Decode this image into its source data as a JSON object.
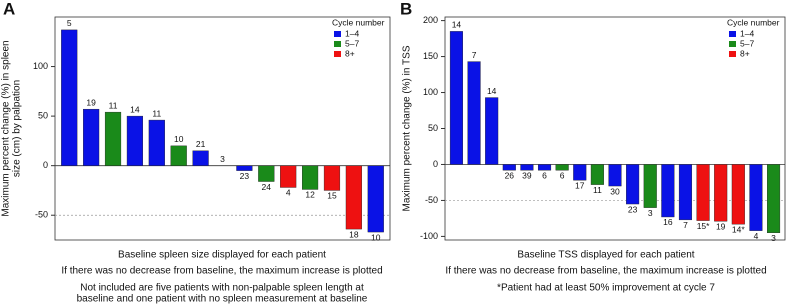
{
  "chart_data": [
    {
      "type": "bar",
      "panel": "A",
      "y_label": [
        "Maximum percent change (%) in spleen",
        "size (cm) by palpation"
      ],
      "values": [
        137,
        57,
        54,
        50,
        46,
        20,
        15,
        0,
        -5,
        -16,
        -22,
        -24,
        -25,
        -64,
        -67
      ],
      "bar_labels": [
        "5",
        "19",
        "11",
        "14",
        "11",
        "10",
        "21",
        "3",
        "23",
        "24",
        "4",
        "12",
        "15",
        "18",
        "10"
      ],
      "bar_colors": [
        "#0a12e6",
        "#0a12e6",
        "#1a8a1a",
        "#0a12e6",
        "#0a12e6",
        "#1a8a1a",
        "#0a12e6",
        "#0a12e6",
        "#0a12e6",
        "#1a8a1a",
        "#ee1111",
        "#1a8a1a",
        "#ee1111",
        "#ee1111",
        "#0a12e6"
      ],
      "ylim": [
        -75,
        150
      ],
      "yticks": [
        -50,
        0,
        50,
        100
      ],
      "reference_line": -50,
      "legend_title": "Cycle number",
      "legend": [
        {
          "name": "1–4",
          "color": "#0a12e6"
        },
        {
          "name": "5–7",
          "color": "#1a8a1a"
        },
        {
          "name": "8+",
          "color": "#ee1111"
        }
      ],
      "notes": [
        "Baseline spleen size displayed for each patient",
        "If there was no decrease from baseline, the maximum increase is plotted",
        "Not included are five patients with non-palpable spleen length at",
        "baseline and one patient with no spleen measurement at baseline"
      ]
    },
    {
      "type": "bar",
      "panel": "B",
      "y_label": [
        "Maximum percent change (%) in TSS"
      ],
      "values": [
        185,
        143,
        93,
        -8,
        -8,
        -8,
        -8,
        -22,
        -28,
        -30,
        -55,
        -60,
        -73,
        -77,
        -78,
        -79,
        -83,
        -92,
        -95
      ],
      "bar_labels": [
        "14",
        "7",
        "14",
        "26",
        "39",
        "6",
        "6",
        "17",
        "11",
        "30",
        "23",
        "3",
        "16",
        "7",
        "15*",
        "19",
        "14*",
        "4",
        "3"
      ],
      "bar_colors": [
        "#0a12e6",
        "#0a12e6",
        "#0a12e6",
        "#0a12e6",
        "#0a12e6",
        "#0a12e6",
        "#1a8a1a",
        "#0a12e6",
        "#1a8a1a",
        "#0a12e6",
        "#0a12e6",
        "#1a8a1a",
        "#0a12e6",
        "#0a12e6",
        "#ee1111",
        "#ee1111",
        "#ee1111",
        "#0a12e6",
        "#1a8a1a"
      ],
      "ylim": [
        -105,
        205
      ],
      "yticks": [
        -100,
        -50,
        0,
        50,
        100,
        150,
        200
      ],
      "reference_line": -50,
      "legend_title": "Cycle number",
      "legend": [
        {
          "name": "1–4",
          "color": "#0a12e6"
        },
        {
          "name": "5–7",
          "color": "#1a8a1a"
        },
        {
          "name": "8+",
          "color": "#ee1111"
        }
      ],
      "notes": [
        "Baseline TSS displayed for each patient",
        "If there was no decrease from baseline, the maximum increase is plotted",
        "*Patient had at least 50% improvement at cycle 7"
      ]
    }
  ]
}
